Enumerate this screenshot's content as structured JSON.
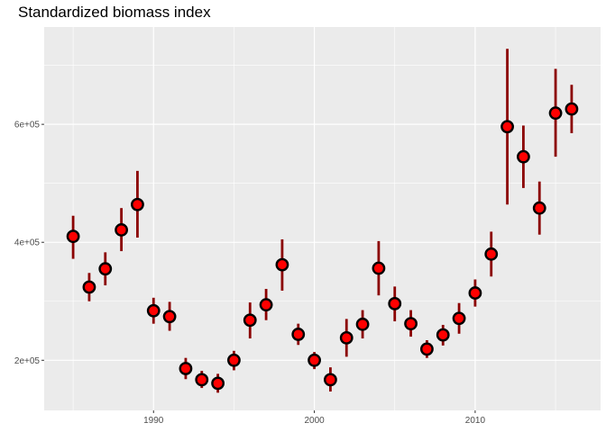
{
  "chart_data": {
    "type": "scatter",
    "title": "Standardized biomass index",
    "xlabel": "",
    "ylabel": "",
    "xlim": [
      1983.2,
      2017.8
    ],
    "ylim": [
      115000,
      765000
    ],
    "x_ticks": [
      1990,
      2000,
      2010
    ],
    "x_tick_labels": [
      "1990",
      "2000",
      "2010"
    ],
    "y_ticks": [
      200000,
      400000,
      600000
    ],
    "y_tick_labels": [
      "2e+05",
      "4e+05",
      "6e+05"
    ],
    "grid": true,
    "colors": {
      "panel": "#ebebeb",
      "grid": "#ffffff",
      "error_bar": "#8b0000",
      "point_fill": "#ff0000",
      "point_stroke": "#000000"
    },
    "points": [
      {
        "x": 1985,
        "y": 410000,
        "lower": 372000,
        "upper": 445000
      },
      {
        "x": 1986,
        "y": 324000,
        "lower": 300000,
        "upper": 348000
      },
      {
        "x": 1987,
        "y": 355000,
        "lower": 327000,
        "upper": 383000
      },
      {
        "x": 1988,
        "y": 421000,
        "lower": 385000,
        "upper": 458000
      },
      {
        "x": 1989,
        "y": 464000,
        "lower": 408000,
        "upper": 521000
      },
      {
        "x": 1990,
        "y": 284000,
        "lower": 262000,
        "upper": 306000
      },
      {
        "x": 1991,
        "y": 274000,
        "lower": 250000,
        "upper": 299000
      },
      {
        "x": 1992,
        "y": 186000,
        "lower": 168000,
        "upper": 204000
      },
      {
        "x": 1993,
        "y": 167000,
        "lower": 153000,
        "upper": 182000
      },
      {
        "x": 1994,
        "y": 161000,
        "lower": 145000,
        "upper": 177000
      },
      {
        "x": 1995,
        "y": 200000,
        "lower": 183000,
        "upper": 216000
      },
      {
        "x": 1996,
        "y": 268000,
        "lower": 237000,
        "upper": 298000
      },
      {
        "x": 1997,
        "y": 294000,
        "lower": 268000,
        "upper": 321000
      },
      {
        "x": 1998,
        "y": 362000,
        "lower": 318000,
        "upper": 405000
      },
      {
        "x": 1999,
        "y": 244000,
        "lower": 226000,
        "upper": 262000
      },
      {
        "x": 2000,
        "y": 200000,
        "lower": 185000,
        "upper": 214000
      },
      {
        "x": 2001,
        "y": 167000,
        "lower": 147000,
        "upper": 188000
      },
      {
        "x": 2002,
        "y": 238000,
        "lower": 206000,
        "upper": 270000
      },
      {
        "x": 2003,
        "y": 261000,
        "lower": 237000,
        "upper": 285000
      },
      {
        "x": 2004,
        "y": 356000,
        "lower": 310000,
        "upper": 402000
      },
      {
        "x": 2005,
        "y": 296000,
        "lower": 266000,
        "upper": 325000
      },
      {
        "x": 2006,
        "y": 262000,
        "lower": 240000,
        "upper": 285000
      },
      {
        "x": 2007,
        "y": 219000,
        "lower": 204000,
        "upper": 234000
      },
      {
        "x": 2008,
        "y": 243000,
        "lower": 225000,
        "upper": 260000
      },
      {
        "x": 2009,
        "y": 271000,
        "lower": 245000,
        "upper": 297000
      },
      {
        "x": 2010,
        "y": 314000,
        "lower": 291000,
        "upper": 337000
      },
      {
        "x": 2011,
        "y": 380000,
        "lower": 342000,
        "upper": 418000
      },
      {
        "x": 2012,
        "y": 596000,
        "lower": 464000,
        "upper": 728000
      },
      {
        "x": 2013,
        "y": 545000,
        "lower": 492000,
        "upper": 598000
      },
      {
        "x": 2014,
        "y": 458000,
        "lower": 413000,
        "upper": 503000
      },
      {
        "x": 2015,
        "y": 619000,
        "lower": 545000,
        "upper": 694000
      },
      {
        "x": 2016,
        "y": 626000,
        "lower": 585000,
        "upper": 667000
      }
    ]
  }
}
